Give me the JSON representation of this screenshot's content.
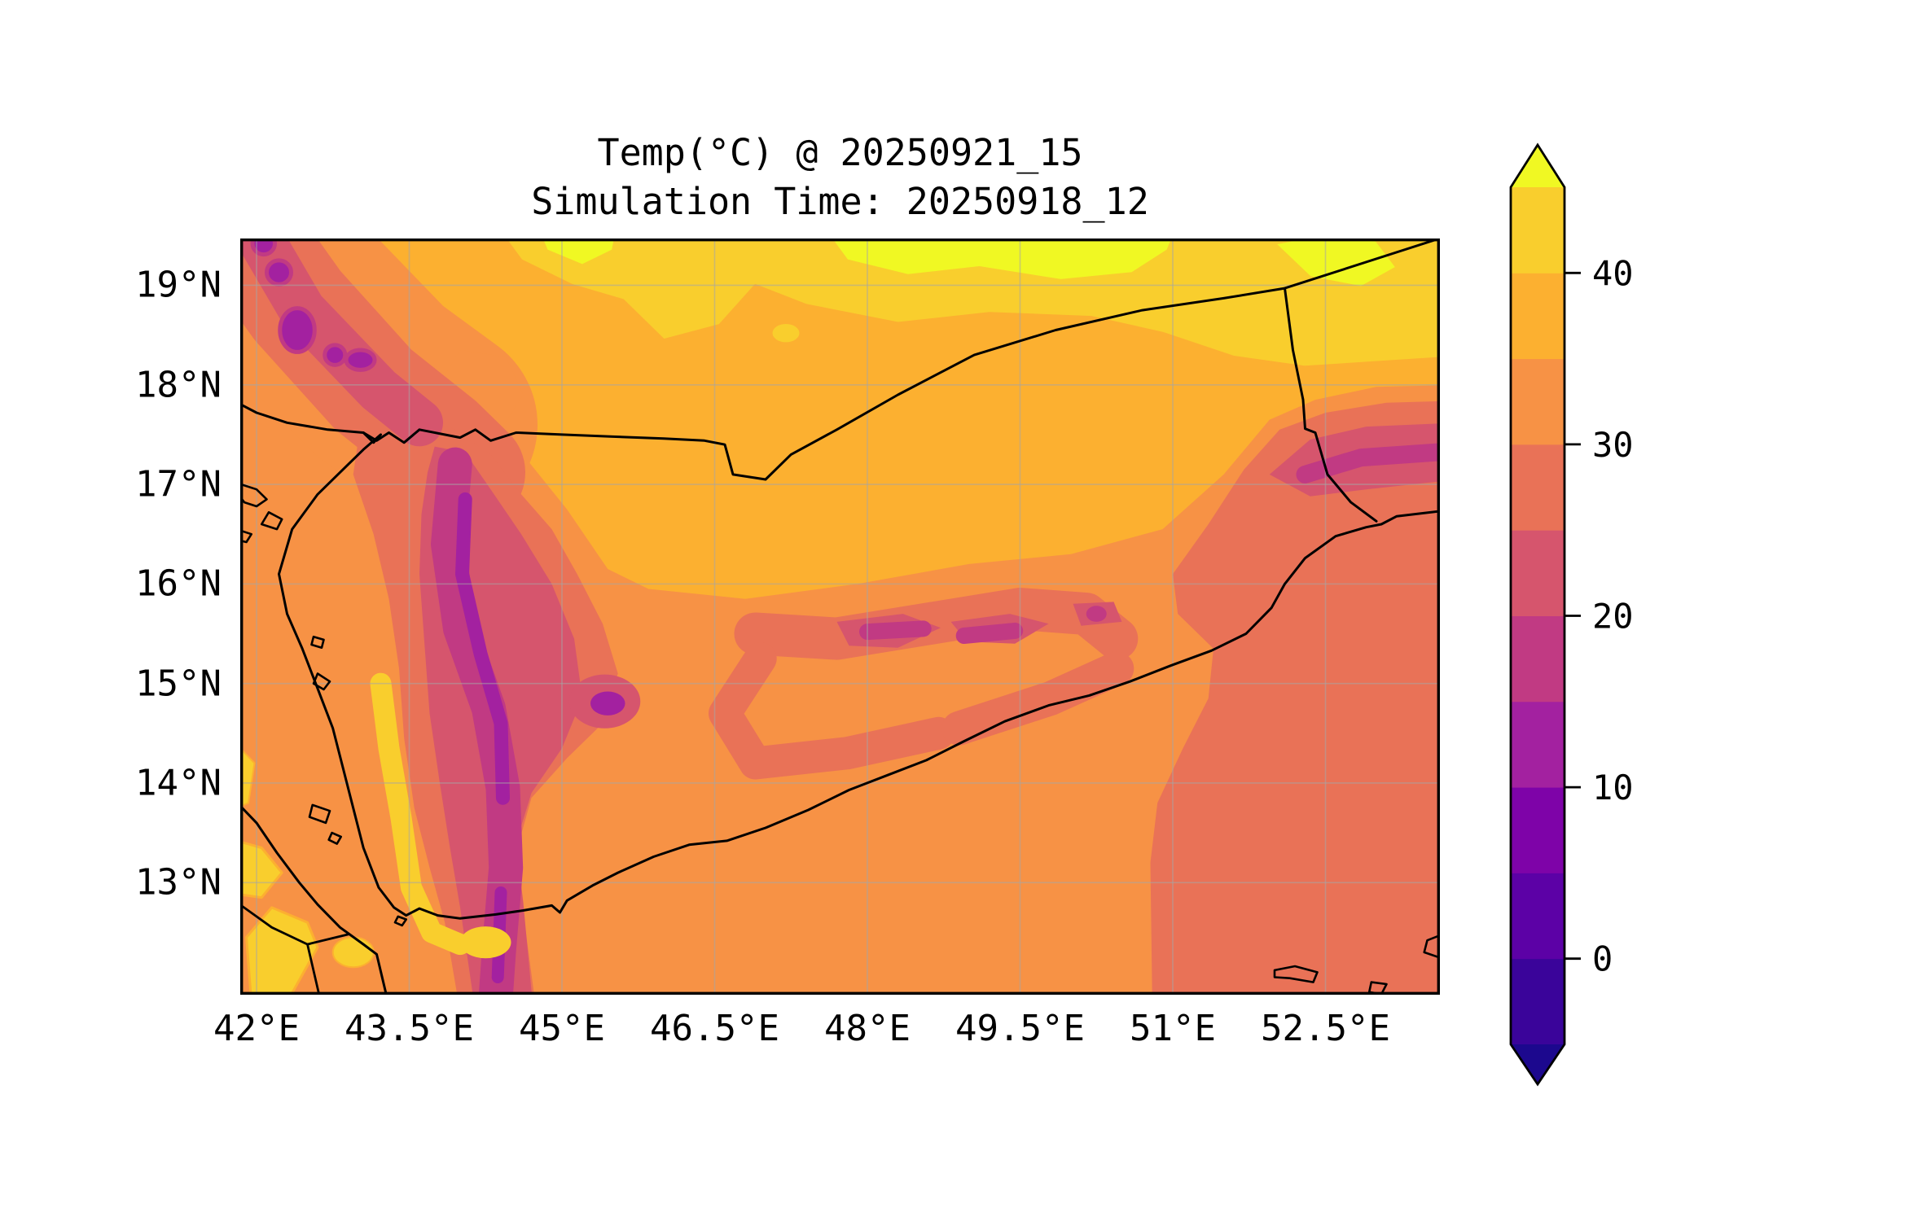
{
  "title": {
    "line1": "Temp(°C) @ 20250921_15",
    "line2": "Simulation Time: 20250918_12"
  },
  "axes": {
    "x_ticks": [
      "42°E",
      "43.5°E",
      "45°E",
      "46.5°E",
      "48°E",
      "49.5°E",
      "51°E",
      "52.5°E"
    ],
    "x_tick_values": [
      42,
      43.5,
      45,
      46.5,
      48,
      49.5,
      51,
      52.5
    ],
    "y_ticks": [
      "19°N",
      "18°N",
      "17°N",
      "16°N",
      "15°N",
      "14°N",
      "13°N"
    ],
    "y_tick_values": [
      19,
      18,
      17,
      16,
      15,
      14,
      13
    ]
  },
  "colorbar": {
    "tick_labels": [
      "40",
      "30",
      "20",
      "10",
      "0"
    ],
    "tick_values": [
      40,
      30,
      20,
      10,
      0
    ],
    "levels": [
      -5,
      0,
      5,
      10,
      15,
      20,
      25,
      30,
      35,
      40,
      45
    ],
    "band_colors_bottom_to_top": [
      "#3a049a",
      "#5c01a6",
      "#7e03a8",
      "#a321a0",
      "#c13a83",
      "#d6556d",
      "#e97257",
      "#f79245",
      "#fcb030",
      "#f9ce2d"
    ],
    "under_color": "#1c088e",
    "over_color": "#f0f823",
    "extend": "both",
    "units": "°C"
  },
  "chart_data": {
    "type": "heatmap",
    "subtype": "filled-contour-geographic-map",
    "title": "Temp(°C) @ 20250921_15",
    "subtitle": "Simulation Time: 20250918_12",
    "variable": "2m air temperature",
    "units": "°C",
    "colormap": "plasma (discrete, 5°C bands)",
    "levels": [
      -5,
      0,
      5,
      10,
      15,
      20,
      25,
      30,
      35,
      40,
      45
    ],
    "extent": {
      "lon_min": 41.84,
      "lon_max": 53.66,
      "lat_min": 11.88,
      "lat_max": 19.47
    },
    "grid": "on (1° graticule, light gray)",
    "legend_position": "right vertical colorbar with extend triangles",
    "overlays": [
      "coastlines",
      "country-borders",
      "islands",
      "lat-lon-gridlines"
    ],
    "regions_read_from_plot": [
      {
        "region": "Yemen western highlands core (43.8-44.6E, 12.5-17.2N)",
        "value_band": "10-15 °C (sinuous core), 15-25 °C flanks"
      },
      {
        "region": "Asir mountain ridge NW corner (42-43.6E, 17.5-19.5N)",
        "value_band": "15-30 °C with 10-15 °C spots"
      },
      {
        "region": "Interior desert / Empty Quarter north (44-53.6E, 17.5-19.5N)",
        "value_band": "35-45 °C, lemon patches >45 °C"
      },
      {
        "region": "Red Sea and Gulf of Aden water (west of ~50.8E)",
        "value_band": "30-35 °C"
      },
      {
        "region": "Arabian Sea and far east coast (east of ~50.8E)",
        "value_band": "25-30 °C"
      },
      {
        "region": "Tihama coastal strip and Djibouti/Eritrea coast",
        "value_band": "40-45 °C"
      },
      {
        "region": "Eastern plateau ridge along ~15.5N (47-50.5E)",
        "value_band": "15-30 °C band"
      },
      {
        "region": "Dhofar mountains (52.3-53.6E, ~17.2N)",
        "value_band": "15-30 °C band"
      },
      {
        "region": "Isolated cool spot (45.4E, 14.8N)",
        "value_band": "10-20 °C"
      }
    ]
  }
}
